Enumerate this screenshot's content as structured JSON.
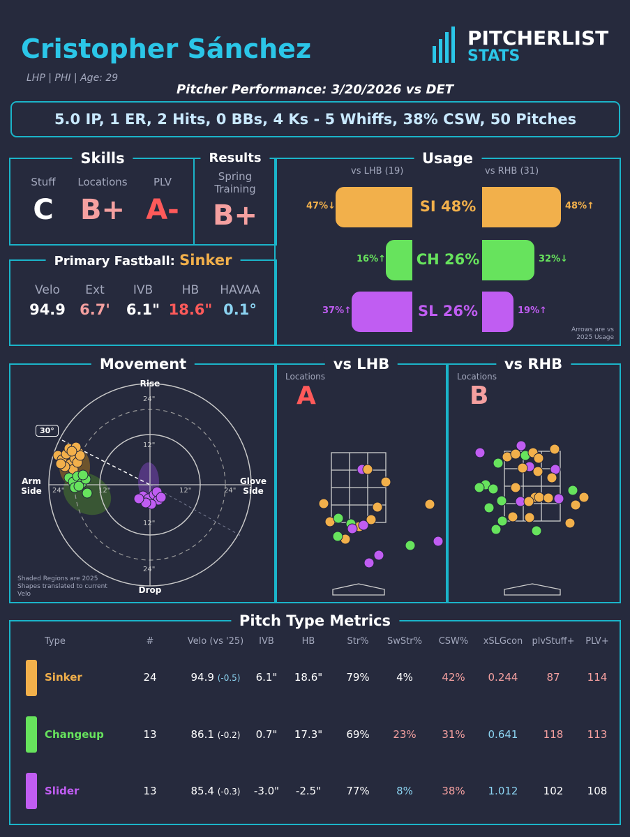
{
  "header": {
    "player_name": "Cristopher Sánchez",
    "player_info": "LHP | PHI | Age: 29",
    "logo_top": "PITCHERLIST",
    "logo_bottom": "STATS",
    "performance_title": "Pitcher Performance: 3/20/2026 vs DET",
    "summary": "5.0 IP, 1 ER, 2 Hits, 0 BBs, 4 Ks - 5 Whiffs, 38% CSW, 50 Pitches"
  },
  "colors": {
    "accent": "#1bb4c9",
    "sinker": "#f2b04b",
    "changeup": "#67e35d",
    "slider": "#c05df2",
    "grade_pink": "#f5a0a0",
    "grade_red": "#ff5a5a",
    "blue_val": "#8cd4f2"
  },
  "skills": {
    "title": "Skills",
    "stuff_label": "Stuff",
    "stuff_grade": "C",
    "locations_label": "Locations",
    "locations_grade": "B+",
    "plv_label": "PLV",
    "plv_grade": "A-"
  },
  "results": {
    "title": "Results",
    "label": "Spring Training",
    "grade": "B+"
  },
  "fastball": {
    "title": "Primary Fastball:",
    "pitch": "Sinker",
    "metrics": [
      {
        "label": "Velo",
        "value": "94.9"
      },
      {
        "label": "Ext",
        "value": "6.7'"
      },
      {
        "label": "IVB",
        "value": "6.1\""
      },
      {
        "label": "HB",
        "value": "18.6\""
      },
      {
        "label": "HAVAA",
        "value": "0.1°"
      }
    ]
  },
  "usage": {
    "title": "Usage",
    "lhb_header": "vs LHB (19)",
    "rhb_header": "vs RHB (31)",
    "rows": [
      {
        "pitch": "SI 48%",
        "lhb_pct": 47,
        "lhb_label": "47%↓",
        "rhb_pct": 48,
        "rhb_label": "48%↑"
      },
      {
        "pitch": "CH 26%",
        "lhb_pct": 16,
        "lhb_label": "16%↑",
        "rhb_pct": 32,
        "rhb_label": "32%↓"
      },
      {
        "pitch": "SL 26%",
        "lhb_pct": 37,
        "lhb_label": "37%↑",
        "rhb_pct": 19,
        "rhb_label": "19%↑"
      }
    ],
    "note_line1": "Arrows are vs",
    "note_line2": "2025 Usage"
  },
  "movement": {
    "title": "Movement",
    "rise": "Rise",
    "drop": "Drop",
    "arm_side": "Arm Side",
    "glove_side": "Glove Side",
    "ring_24": "24\"",
    "ring_12": "12\"",
    "arm_angle": "30°",
    "note": "Shaded Regions are 2025 Shapes translated to current Velo"
  },
  "vs_lhb": {
    "title": "vs LHB",
    "label": "Locations",
    "grade": "A"
  },
  "vs_rhb": {
    "title": "vs RHB",
    "label": "Locations",
    "grade": "B"
  },
  "metrics_table": {
    "title": "Pitch Type Metrics",
    "headers": [
      "Type",
      "#",
      "Velo (vs '25)",
      "IVB",
      "HB",
      "Str%",
      "SwStr%",
      "CSW%",
      "xSLGcon",
      "plvStuff+",
      "PLV+"
    ],
    "rows": [
      {
        "type": "Sinker",
        "count": "24",
        "velo": "94.9",
        "velo_diff": "(-0.5)",
        "ivb": "6.1\"",
        "hb": "18.6\"",
        "str": "79%",
        "swstr": "4%",
        "csw": "42%",
        "xslg": "0.244",
        "stuff": "87",
        "plv": "114"
      },
      {
        "type": "Changeup",
        "count": "13",
        "velo": "86.1",
        "velo_diff": "(-0.2)",
        "ivb": "0.7\"",
        "hb": "17.3\"",
        "str": "69%",
        "swstr": "23%",
        "csw": "31%",
        "xslg": "0.641",
        "stuff": "118",
        "plv": "113"
      },
      {
        "type": "Slider",
        "count": "13",
        "velo": "85.4",
        "velo_diff": "(-0.3)",
        "ivb": "-3.0\"",
        "hb": "-2.5\"",
        "str": "77%",
        "swstr": "8%",
        "csw": "38%",
        "xslg": "1.012",
        "stuff": "102",
        "plv": "108"
      }
    ]
  }
}
